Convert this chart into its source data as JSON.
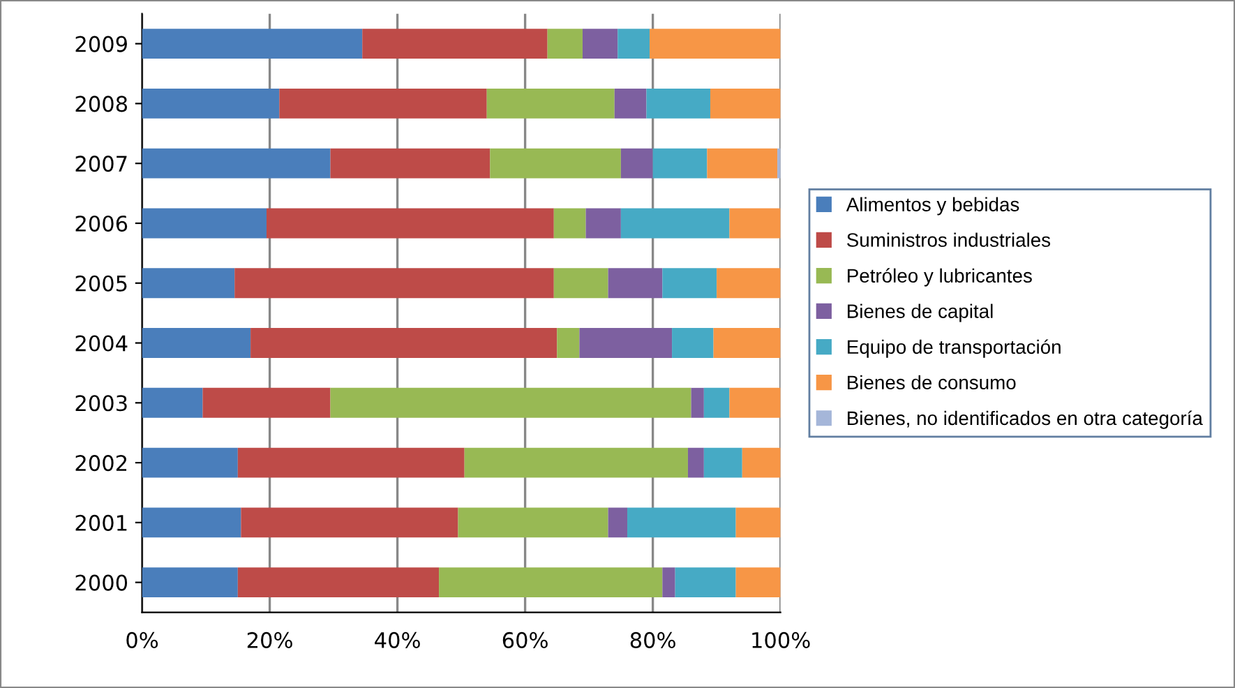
{
  "chart_data": {
    "type": "bar",
    "orientation": "horizontal",
    "stacked": true,
    "categories": [
      "2009",
      "2008",
      "2007",
      "2006",
      "2005",
      "2004",
      "2003",
      "2002",
      "2001",
      "2000"
    ],
    "series": [
      {
        "name": "Alimentos y bebidas",
        "color": "#4a7ebb",
        "values": [
          34.5,
          21.5,
          29.5,
          19.5,
          14.5,
          17,
          9.5,
          15,
          15.5,
          15
        ]
      },
      {
        "name": "Suministros industriales",
        "color": "#be4b48",
        "values": [
          29,
          32.5,
          25,
          45,
          50,
          48,
          20,
          35.5,
          34,
          31.5
        ]
      },
      {
        "name": "Petróleo y lubricantes",
        "color": "#98b954",
        "values": [
          5.5,
          20,
          20.5,
          5,
          8.5,
          3.5,
          56.5,
          35,
          23.5,
          35
        ]
      },
      {
        "name": "Bienes de capital",
        "color": "#7d60a0",
        "values": [
          5.5,
          5,
          5,
          5.5,
          8.5,
          14.5,
          2,
          2.5,
          3,
          2
        ]
      },
      {
        "name": "Equipo de transportación",
        "color": "#46aac5",
        "values": [
          5,
          10,
          8.5,
          17,
          8.5,
          6.5,
          4,
          6,
          17,
          9.5
        ]
      },
      {
        "name": "Bienes de consumo",
        "color": "#f79646",
        "values": [
          20.5,
          11,
          11,
          8,
          10,
          10.5,
          8,
          6,
          7,
          7
        ]
      },
      {
        "name": "Bienes, no identificados en otra categoría",
        "color": "#a5b6d9",
        "values": [
          0,
          0,
          0.5,
          0,
          0,
          0,
          0,
          0,
          0,
          0
        ]
      }
    ],
    "xlim": [
      0,
      100
    ],
    "xticks": [
      {
        "value": 0,
        "label": "0%"
      },
      {
        "value": 20,
        "label": "20%"
      },
      {
        "value": 40,
        "label": "40%"
      },
      {
        "value": 60,
        "label": "60%"
      },
      {
        "value": 80,
        "label": "80%"
      },
      {
        "value": 100,
        "label": "100%"
      }
    ],
    "grid": "x",
    "legend": "right"
  }
}
